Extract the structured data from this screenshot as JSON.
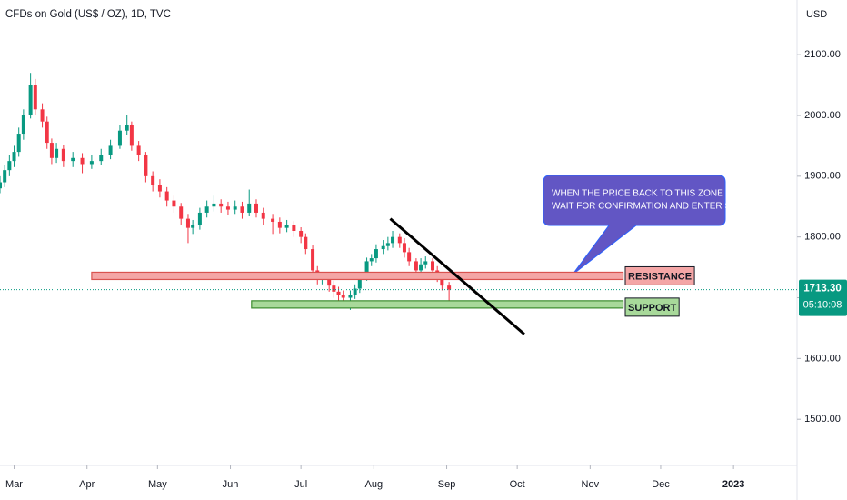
{
  "chart_data": {
    "type": "candlestick",
    "title": "CFDs on Gold (US$ / OZ), 1D, TVC",
    "currency": "USD",
    "x": [
      -6,
      -4,
      -2,
      0,
      2,
      4,
      7,
      9,
      12,
      14,
      16,
      18,
      21,
      25,
      29,
      33,
      37,
      41,
      45,
      48,
      50,
      53,
      56,
      59,
      62,
      65,
      68,
      71,
      74,
      76,
      79,
      82,
      85,
      88,
      91,
      94,
      97,
      100,
      103,
      106,
      110,
      113,
      116,
      119,
      122,
      124,
      127,
      129,
      131,
      134,
      136,
      138,
      140,
      143,
      145,
      147,
      150,
      152,
      154,
      157,
      159,
      161,
      164,
      166,
      168,
      171,
      173,
      175,
      178,
      180,
      182,
      185
    ],
    "open": [
      1880,
      1890,
      1910,
      1925,
      1940,
      1970,
      2000,
      2050,
      2010,
      1990,
      1955,
      1930,
      1945,
      1925,
      1930,
      1920,
      1925,
      1935,
      1950,
      1975,
      1985,
      1950,
      1935,
      1900,
      1885,
      1875,
      1860,
      1850,
      1830,
      1815,
      1820,
      1840,
      1850,
      1855,
      1850,
      1845,
      1850,
      1840,
      1855,
      1840,
      1830,
      1825,
      1815,
      1820,
      1810,
      1800,
      1780,
      1745,
      1730,
      1735,
      1720,
      1710,
      1705,
      1700,
      1705,
      1715,
      1735,
      1760,
      1765,
      1780,
      1785,
      1790,
      1800,
      1790,
      1775,
      1760,
      1745,
      1755,
      1760,
      1745,
      1735,
      1720
    ],
    "high": [
      1900,
      1918,
      1935,
      1950,
      1980,
      2010,
      2070,
      2060,
      2020,
      1998,
      1962,
      1955,
      1952,
      1940,
      1938,
      1935,
      1945,
      1960,
      1985,
      2000,
      1990,
      1958,
      1940,
      1908,
      1895,
      1882,
      1868,
      1856,
      1838,
      1828,
      1848,
      1860,
      1868,
      1862,
      1858,
      1860,
      1858,
      1878,
      1862,
      1848,
      1838,
      1832,
      1828,
      1826,
      1816,
      1806,
      1786,
      1752,
      1742,
      1740,
      1728,
      1718,
      1712,
      1712,
      1722,
      1742,
      1766,
      1772,
      1788,
      1795,
      1800,
      1810,
      1806,
      1798,
      1782,
      1765,
      1765,
      1768,
      1765,
      1752,
      1740,
      1726
    ],
    "low": [
      1872,
      1882,
      1900,
      1915,
      1932,
      1960,
      1995,
      2000,
      1980,
      1945,
      1920,
      1922,
      1915,
      1915,
      1905,
      1912,
      1918,
      1928,
      1945,
      1968,
      1942,
      1925,
      1890,
      1875,
      1865,
      1850,
      1840,
      1820,
      1790,
      1805,
      1812,
      1832,
      1842,
      1840,
      1836,
      1838,
      1830,
      1834,
      1832,
      1820,
      1805,
      1806,
      1808,
      1800,
      1790,
      1772,
      1738,
      1722,
      1722,
      1710,
      1700,
      1695,
      1692,
      1680,
      1698,
      1708,
      1728,
      1752,
      1758,
      1772,
      1778,
      1782,
      1782,
      1766,
      1752,
      1736,
      1738,
      1748,
      1738,
      1726,
      1712,
      1692
    ],
    "close": [
      1890,
      1910,
      1925,
      1940,
      1970,
      2000,
      2050,
      2010,
      1990,
      1955,
      1930,
      1945,
      1925,
      1930,
      1920,
      1925,
      1935,
      1950,
      1975,
      1985,
      1950,
      1935,
      1900,
      1885,
      1875,
      1860,
      1850,
      1830,
      1815,
      1820,
      1840,
      1850,
      1855,
      1850,
      1845,
      1850,
      1840,
      1855,
      1840,
      1830,
      1825,
      1815,
      1820,
      1810,
      1800,
      1780,
      1745,
      1730,
      1735,
      1720,
      1710,
      1705,
      1700,
      1705,
      1715,
      1735,
      1760,
      1765,
      1780,
      1785,
      1790,
      1800,
      1790,
      1775,
      1760,
      1745,
      1755,
      1760,
      1745,
      1735,
      1720,
      1713.3
    ],
    "up_color": "#089981",
    "down_color": "#f23645",
    "xlim": [
      -6,
      333
    ],
    "ylim": [
      1424,
      2190
    ],
    "xticks": [
      {
        "value": 0,
        "label": "Mar"
      },
      {
        "value": 31,
        "label": "Apr"
      },
      {
        "value": 61,
        "label": "May"
      },
      {
        "value": 92,
        "label": "Jun"
      },
      {
        "value": 122,
        "label": "Jul"
      },
      {
        "value": 153,
        "label": "Aug"
      },
      {
        "value": 184,
        "label": "Sep"
      },
      {
        "value": 214,
        "label": "Oct"
      },
      {
        "value": 245,
        "label": "Nov"
      },
      {
        "value": 275,
        "label": "Dec"
      },
      {
        "value": 306,
        "label": "2023"
      }
    ],
    "yticks": [
      {
        "value": 1500,
        "label": "1500.00"
      },
      {
        "value": 1600,
        "label": "1600.00"
      },
      {
        "value": 1700,
        "label": "1700.00"
      },
      {
        "value": 1800,
        "label": "1800.00"
      },
      {
        "value": 1900,
        "label": "1900.00"
      },
      {
        "value": 2000,
        "label": "2000.00"
      },
      {
        "value": 2100,
        "label": "2100.00"
      }
    ],
    "last_price": {
      "value": 1713.3,
      "label": "1713.30"
    },
    "countdown": "05:10:08",
    "zones": [
      {
        "label": "RESISTANCE",
        "range": [
          1730,
          1742
        ],
        "start": 33,
        "end": 259,
        "color": "#f4a6a6",
        "edge": "#d9534f"
      },
      {
        "label": "SUPPORT",
        "range": [
          1683,
          1695
        ],
        "start": 101,
        "end": 259,
        "color": "#a8d99a",
        "edge": "#3c8c2e"
      }
    ],
    "trendline": {
      "x": [
        160,
        217
      ],
      "y": [
        1830,
        1640
      ]
    },
    "callout": {
      "lines": [
        "WHEN THE PRICE BACK TO THIS ZONE",
        "WAIT FOR CONFIRMATION AND ENTER SHORT"
      ]
    }
  }
}
